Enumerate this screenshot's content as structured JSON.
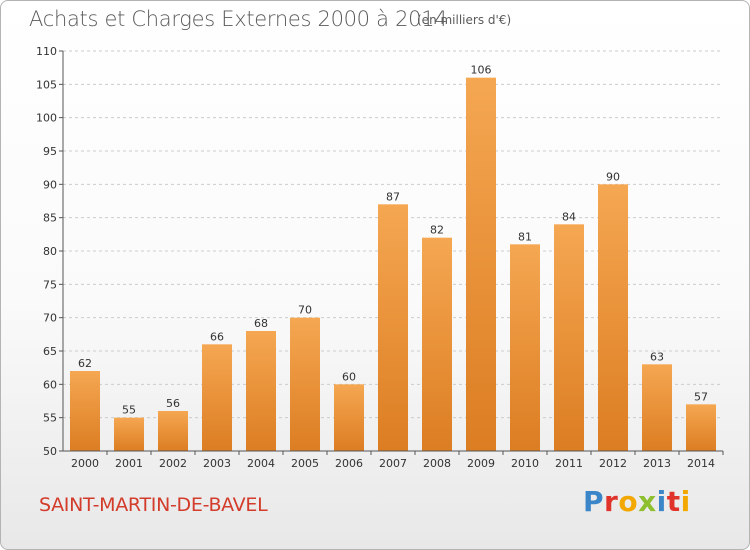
{
  "title": "Achats et Charges Externes 2000 à 2014",
  "unit_note": "(en milliers d'€)",
  "commune": "SAINT-MARTIN-DE-BAVEL",
  "logo": {
    "text": "Proxiti",
    "letters": [
      {
        "ch": "P",
        "color": "#3a86c8"
      },
      {
        "ch": "r",
        "color": "#e0342a"
      },
      {
        "ch": "o",
        "color": "#f2a800"
      },
      {
        "ch": "x",
        "color": "#8dbf2f"
      },
      {
        "ch": "i",
        "color": "#3a86c8"
      },
      {
        "ch": "t",
        "color": "#e0342a"
      },
      {
        "ch": "i",
        "color": "#f2a800"
      }
    ]
  },
  "colors": {
    "bar_top": "#f5a752",
    "bar_bottom": "#dc7d22",
    "grid": "#cccccc",
    "axis_text": "#333333",
    "commune": "#d33b2a"
  },
  "chart_data": {
    "type": "bar",
    "title": "Achats et Charges Externes 2000 à 2014",
    "subtitle": "(en milliers d'€)",
    "xlabel": "",
    "ylabel": "",
    "categories": [
      "2000",
      "2001",
      "2002",
      "2003",
      "2004",
      "2005",
      "2006",
      "2007",
      "2008",
      "2009",
      "2010",
      "2011",
      "2012",
      "2013",
      "2014"
    ],
    "values": [
      62,
      55,
      56,
      66,
      68,
      70,
      60,
      87,
      82,
      106,
      81,
      84,
      90,
      63,
      57
    ],
    "ylim": [
      50,
      110
    ],
    "yticks": [
      50,
      55,
      60,
      65,
      70,
      75,
      80,
      85,
      90,
      95,
      100,
      105,
      110
    ],
    "grid": true,
    "data_labels": true
  }
}
